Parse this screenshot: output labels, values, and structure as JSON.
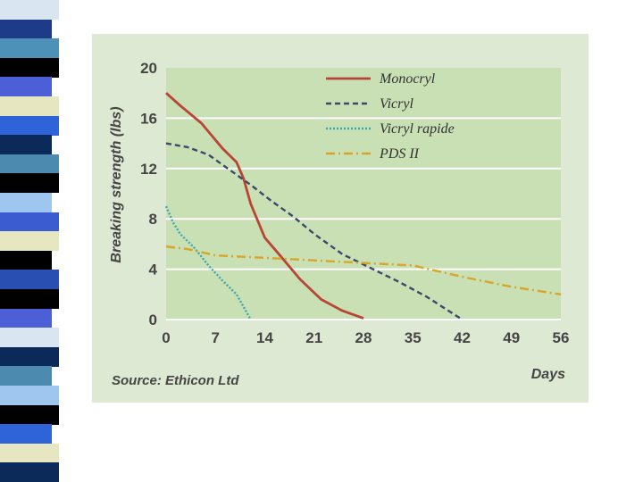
{
  "slide": {
    "stripe_colors": [
      "#d9e6f2",
      "#1d3b87",
      "#4d90b8",
      "#000000",
      "#4d5fd6",
      "#e6e6c0",
      "#2f63d8",
      "#0b2a5a",
      "#4c8ab0",
      "#000000",
      "#9fc6ee",
      "#3a5cd0",
      "#e6e6c0",
      "#000000",
      "#2a4fb2",
      "#000000",
      "#4d5fd6",
      "#d9e6f2",
      "#0b2a5a",
      "#4c8ab0",
      "#9fc6ee",
      "#000000",
      "#2f63d8",
      "#e6e6c0",
      "#0b2a5a"
    ]
  },
  "chart_data": {
    "type": "line",
    "xlabel": "Days",
    "ylabel": "Breaking strength (lbs)",
    "source": "Source: Ethicon Ltd",
    "xlim": [
      0,
      56
    ],
    "ylim": [
      0,
      20
    ],
    "xticks": [
      0,
      7,
      14,
      21,
      28,
      35,
      42,
      49,
      56
    ],
    "yticks": [
      0,
      4,
      8,
      12,
      16,
      20
    ],
    "grid": "horizontal",
    "legend_position": "top-right",
    "series": [
      {
        "name": "Monocryl",
        "color": "#b84535",
        "style": "solid",
        "x": [
          0,
          2,
          5,
          8,
          10,
          11,
          12,
          14,
          16,
          19,
          22,
          25,
          28
        ],
        "y": [
          18,
          17,
          15.6,
          13.6,
          12.5,
          11.2,
          9.2,
          6.5,
          5.2,
          3.2,
          1.6,
          0.7,
          0.1
        ]
      },
      {
        "name": "Vicryl",
        "color": "#3a4a6a",
        "style": "dashed",
        "x": [
          0,
          3,
          6,
          9,
          12,
          15,
          18,
          21,
          25,
          29,
          33,
          37,
          42
        ],
        "y": [
          14,
          13.7,
          13.1,
          11.9,
          10.7,
          9.4,
          8.2,
          6.8,
          5.2,
          4.1,
          3.0,
          1.8,
          0
        ]
      },
      {
        "name": "Vicryl rapide",
        "color": "#3fa7b0",
        "style": "dotted",
        "x": [
          0,
          1,
          2,
          4,
          6,
          8,
          10,
          12
        ],
        "y": [
          9,
          7.7,
          6.8,
          5.7,
          4.3,
          3.1,
          2,
          0
        ]
      },
      {
        "name": "PDS II",
        "color": "#d8a628",
        "style": "dashdot",
        "x": [
          0,
          3,
          7,
          14,
          21,
          28,
          35,
          42,
          49,
          56
        ],
        "y": [
          5.8,
          5.6,
          5.1,
          4.9,
          4.7,
          4.5,
          4.3,
          3.4,
          2.6,
          2.0
        ]
      }
    ]
  }
}
